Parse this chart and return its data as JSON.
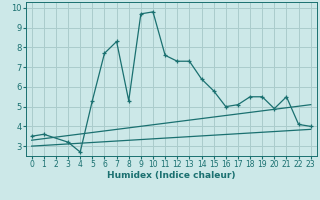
{
  "xlabel": "Humidex (Indice chaleur)",
  "background_color": "#cce8e8",
  "grid_color": "#aacccc",
  "line_color": "#1a7070",
  "xlim": [
    -0.5,
    23.5
  ],
  "ylim": [
    2.5,
    10.3
  ],
  "xticks": [
    0,
    1,
    2,
    3,
    4,
    5,
    6,
    7,
    8,
    9,
    10,
    11,
    12,
    13,
    14,
    15,
    16,
    17,
    18,
    19,
    20,
    21,
    22,
    23
  ],
  "yticks": [
    3,
    4,
    5,
    6,
    7,
    8,
    9,
    10
  ],
  "line1_x": [
    0,
    1,
    3,
    4,
    5,
    6,
    7,
    8,
    9,
    10,
    11,
    12,
    13,
    14,
    15,
    16,
    17,
    18,
    19,
    20,
    21,
    22,
    23
  ],
  "line1_y": [
    3.5,
    3.6,
    3.2,
    2.7,
    5.3,
    7.7,
    8.3,
    5.3,
    9.7,
    9.8,
    7.6,
    7.3,
    7.3,
    6.4,
    5.8,
    5.0,
    5.1,
    5.5,
    5.5,
    4.9,
    5.5,
    4.1,
    4.0
  ],
  "line2_x": [
    0,
    23
  ],
  "line2_y": [
    3.3,
    5.1
  ],
  "line3_x": [
    0,
    23
  ],
  "line3_y": [
    3.0,
    3.85
  ]
}
